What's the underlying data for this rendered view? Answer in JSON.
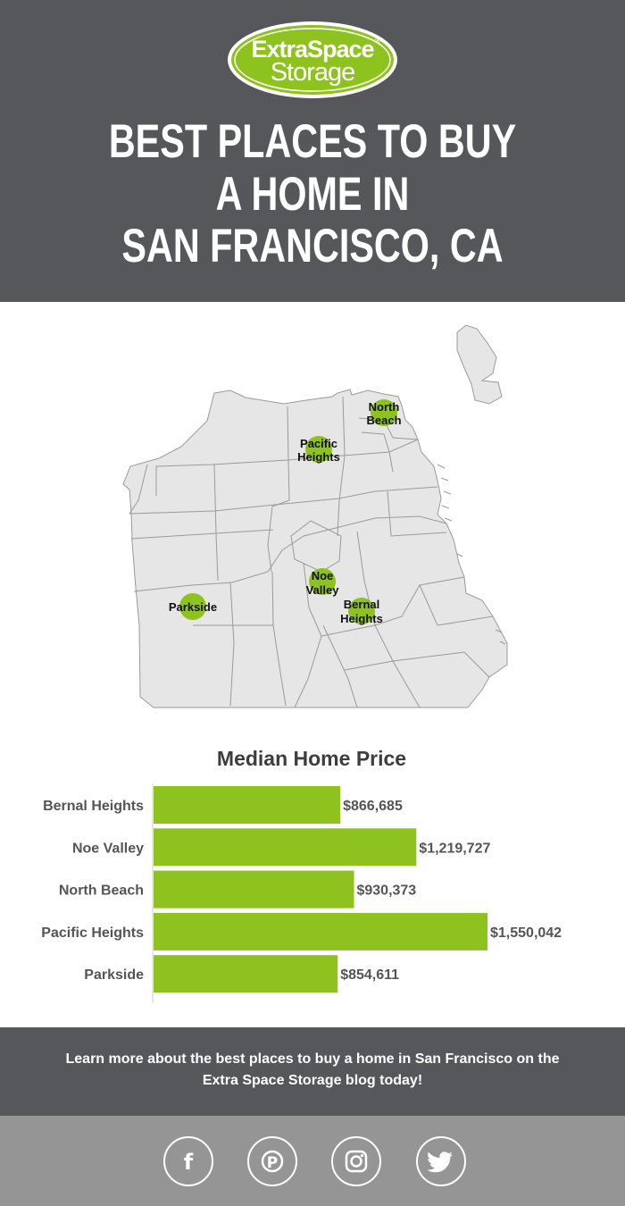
{
  "brand": {
    "logo_line1": "ExtraSpace",
    "logo_line2": "Storage",
    "logo_reg": "®",
    "logo_color": "#8dc21f"
  },
  "headline": {
    "line1": "BEST PLACES TO BUY",
    "line2": "A HOME IN",
    "line3": "SAN FRANCISCO, CA"
  },
  "map": {
    "labels": {
      "north_beach": [
        "North",
        "Beach"
      ],
      "pacific_heights": [
        "Pacific",
        "Heights"
      ],
      "noe_valley": [
        "Noe",
        "Valley"
      ],
      "parkside": [
        "Parkside"
      ],
      "bernal_heights": [
        "Bernal",
        "Heights"
      ]
    },
    "marker_color": "#8dc21f",
    "land_color": "#e6e6e6",
    "border_color": "#9a9a9a"
  },
  "chart_data": {
    "type": "bar",
    "orientation": "horizontal",
    "title": "Median Home Price",
    "categories": [
      "Bernal Heights",
      "Noe Valley",
      "North Beach",
      "Pacific Heights",
      "Parkside"
    ],
    "values": [
      866685,
      1219727,
      930373,
      1550042,
      854611
    ],
    "value_labels": [
      "$866,685",
      "$1,219,727",
      "$930,373",
      "$1,550,042",
      "$854,611"
    ],
    "bar_color": "#8dc21f",
    "xlim": [
      0,
      1550042
    ]
  },
  "cta": {
    "text": "Learn more about the best places to buy a home in San Francisco on the Extra Space Storage blog today!"
  },
  "social": {
    "icons": [
      "facebook-icon",
      "pinterest-icon",
      "instagram-icon",
      "twitter-icon"
    ],
    "facebook_glyph": "f",
    "pinterest_glyph": "P"
  }
}
